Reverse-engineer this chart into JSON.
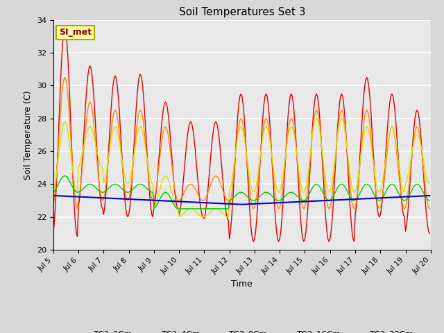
{
  "title": "Soil Temperatures Set 3",
  "xlabel": "Time",
  "ylabel": "Soil Temperature (C)",
  "ylim": [
    20,
    34
  ],
  "yticks": [
    20,
    22,
    24,
    26,
    28,
    30,
    32,
    34
  ],
  "background_color": "#d8d8d8",
  "plot_bg_color": "#e8e8e8",
  "annotation_text": "SI_met",
  "annotation_box_color": "#ffffaa",
  "annotation_border_color": "#aaaa00",
  "annotation_text_color": "#880000",
  "series_colors": {
    "TC3_2Cm": "#dd0000",
    "TC3_4Cm": "#ff8800",
    "TC3_8Cm": "#dddd00",
    "TC3_16Cm": "#00cc00",
    "TC3_32Cm": "#0000cc"
  },
  "xtick_labels": [
    "Jul 5",
    "Jul 6",
    "Jul 7",
    "Jul 8",
    "Jul 9",
    "Jul 10",
    "Jul 11",
    "Jul 12",
    "Jul 13",
    "Jul 14",
    "Jul 15",
    "Jul 16",
    "Jul 17",
    "Jul 18",
    "Jul 19",
    "Jul 20"
  ],
  "n_points": 360,
  "x_start": 0,
  "x_end": 360,
  "xtick_positions": [
    0,
    24,
    48,
    72,
    96,
    120,
    144,
    168,
    192,
    216,
    240,
    264,
    288,
    312,
    336,
    360
  ],
  "day_peak_hours": 14,
  "day_min_hours": 5,
  "peak_2cm": [
    33.5,
    31.2,
    30.6,
    30.7,
    29.0,
    27.8,
    27.8,
    29.5,
    29.5,
    29.5,
    29.5,
    29.5,
    30.5,
    29.5,
    28.5
  ],
  "min_2cm": [
    20.8,
    22.5,
    22.0,
    22.0,
    22.5,
    22.0,
    21.8,
    20.5,
    20.5,
    20.5,
    20.5,
    20.5,
    22.0,
    22.0,
    21.0
  ],
  "peak_4cm": [
    30.5,
    29.0,
    28.5,
    28.5,
    27.5,
    24.0,
    24.5,
    28.0,
    28.0,
    28.0,
    28.5,
    28.5,
    28.5,
    27.5,
    27.5
  ],
  "min_4cm": [
    22.5,
    23.0,
    23.0,
    23.0,
    23.0,
    23.0,
    23.0,
    22.5,
    22.5,
    22.5,
    22.5,
    22.5,
    22.5,
    22.5,
    22.5
  ],
  "peak_8cm": [
    27.8,
    27.5,
    27.5,
    27.5,
    24.5,
    22.5,
    22.5,
    27.5,
    27.5,
    27.5,
    28.0,
    28.0,
    27.5,
    27.5,
    27.0
  ],
  "min_8cm": [
    23.5,
    25.0,
    24.0,
    24.0,
    22.5,
    22.0,
    22.0,
    23.5,
    23.5,
    23.5,
    23.5,
    23.5,
    23.5,
    23.5,
    24.0
  ],
  "peak_16cm": [
    24.5,
    24.0,
    24.0,
    24.0,
    23.5,
    22.5,
    22.5,
    23.5,
    23.5,
    23.5,
    24.0,
    24.0,
    24.0,
    24.0,
    24.0
  ],
  "min_16cm": [
    23.5,
    23.5,
    23.5,
    23.5,
    22.5,
    22.5,
    22.5,
    23.0,
    23.0,
    23.0,
    23.0,
    23.0,
    23.0,
    23.0,
    23.0
  ],
  "base_32cm": 23.3,
  "trend_32cm": -0.003
}
